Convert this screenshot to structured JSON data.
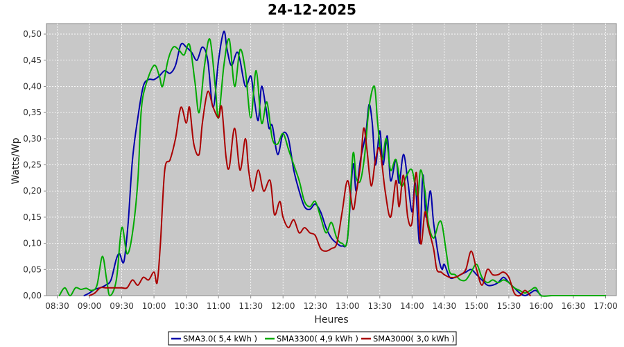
{
  "chart_data": {
    "type": "line",
    "title": "24-12-2025",
    "xlabel": "Heures",
    "ylabel": "Watts/Wp",
    "x_ticks": [
      "08:30",
      "09:00",
      "09:30",
      "10:00",
      "10:30",
      "11:00",
      "11:30",
      "12:00",
      "12:30",
      "13:00",
      "13:30",
      "14:00",
      "14:30",
      "15:00",
      "15:30",
      "16:00",
      "16:30",
      "17:00"
    ],
    "y_ticks": [
      "0,00",
      "0,05",
      "0,10",
      "0,15",
      "0,20",
      "0,25",
      "0,30",
      "0,35",
      "0,40",
      "0,45",
      "0,50"
    ],
    "xlim": [
      "08:20",
      "17:10"
    ],
    "ylim": [
      0,
      0.52
    ],
    "grid": true,
    "legend_position": "bottom",
    "series": [
      {
        "name": "SMA3.0( 5,4 kWh )",
        "color": "#0000aa",
        "points": [
          [
            "08:55",
            0.0
          ],
          [
            "09:00",
            0.005
          ],
          [
            "09:05",
            0.012
          ],
          [
            "09:10",
            0.015
          ],
          [
            "09:15",
            0.02
          ],
          [
            "09:20",
            0.03
          ],
          [
            "09:25",
            0.07
          ],
          [
            "09:28",
            0.08
          ],
          [
            "09:32",
            0.065
          ],
          [
            "09:36",
            0.14
          ],
          [
            "09:40",
            0.26
          ],
          [
            "09:45",
            0.34
          ],
          [
            "09:50",
            0.4
          ],
          [
            "09:55",
            0.413
          ],
          [
            "10:00",
            0.413
          ],
          [
            "10:05",
            0.42
          ],
          [
            "10:10",
            0.43
          ],
          [
            "10:15",
            0.425
          ],
          [
            "10:20",
            0.44
          ],
          [
            "10:25",
            0.48
          ],
          [
            "10:30",
            0.475
          ],
          [
            "10:35",
            0.465
          ],
          [
            "10:40",
            0.45
          ],
          [
            "10:45",
            0.475
          ],
          [
            "10:50",
            0.45
          ],
          [
            "10:55",
            0.36
          ],
          [
            "11:00",
            0.45
          ],
          [
            "11:05",
            0.505
          ],
          [
            "11:08",
            0.47
          ],
          [
            "11:12",
            0.44
          ],
          [
            "11:17",
            0.465
          ],
          [
            "11:20",
            0.45
          ],
          [
            "11:25",
            0.4
          ],
          [
            "11:30",
            0.42
          ],
          [
            "11:33",
            0.38
          ],
          [
            "11:37",
            0.335
          ],
          [
            "11:40",
            0.4
          ],
          [
            "11:44",
            0.36
          ],
          [
            "11:47",
            0.32
          ],
          [
            "11:50",
            0.325
          ],
          [
            "11:55",
            0.27
          ],
          [
            "12:00",
            0.31
          ],
          [
            "12:05",
            0.3
          ],
          [
            "12:10",
            0.24
          ],
          [
            "12:15",
            0.2
          ],
          [
            "12:20",
            0.17
          ],
          [
            "12:25",
            0.165
          ],
          [
            "12:30",
            0.175
          ],
          [
            "12:35",
            0.16
          ],
          [
            "12:40",
            0.13
          ],
          [
            "12:45",
            0.11
          ],
          [
            "12:50",
            0.1
          ],
          [
            "12:55",
            0.095
          ],
          [
            "13:00",
            0.11
          ],
          [
            "13:05",
            0.25
          ],
          [
            "13:08",
            0.2
          ],
          [
            "13:12",
            0.26
          ],
          [
            "13:17",
            0.31
          ],
          [
            "13:20",
            0.365
          ],
          [
            "13:23",
            0.33
          ],
          [
            "13:26",
            0.25
          ],
          [
            "13:30",
            0.315
          ],
          [
            "13:33",
            0.25
          ],
          [
            "13:37",
            0.305
          ],
          [
            "13:40",
            0.22
          ],
          [
            "13:45",
            0.26
          ],
          [
            "13:48",
            0.215
          ],
          [
            "13:52",
            0.27
          ],
          [
            "13:56",
            0.22
          ],
          [
            "14:00",
            0.16
          ],
          [
            "14:03",
            0.215
          ],
          [
            "14:07",
            0.1
          ],
          [
            "14:10",
            0.23
          ],
          [
            "14:13",
            0.15
          ],
          [
            "14:17",
            0.2
          ],
          [
            "14:20",
            0.14
          ],
          [
            "14:25",
            0.07
          ],
          [
            "14:28",
            0.05
          ],
          [
            "14:30",
            0.06
          ],
          [
            "14:35",
            0.035
          ],
          [
            "14:40",
            0.035
          ],
          [
            "14:45",
            0.04
          ],
          [
            "14:50",
            0.045
          ],
          [
            "14:55",
            0.05
          ],
          [
            "15:00",
            0.04
          ],
          [
            "15:05",
            0.03
          ],
          [
            "15:10",
            0.02
          ],
          [
            "15:15",
            0.02
          ],
          [
            "15:20",
            0.025
          ],
          [
            "15:25",
            0.035
          ],
          [
            "15:30",
            0.025
          ],
          [
            "15:35",
            0.015
          ],
          [
            "15:40",
            0.005
          ],
          [
            "15:45",
            0.0
          ],
          [
            "15:50",
            0.005
          ],
          [
            "15:55",
            0.01
          ],
          [
            "16:00",
            0.0
          ]
        ]
      },
      {
        "name": "SMA3300( 4,9 kWh )",
        "color": "#00aa00",
        "points": [
          [
            "08:32",
            0.0
          ],
          [
            "08:37",
            0.015
          ],
          [
            "08:42",
            0.0
          ],
          [
            "08:47",
            0.015
          ],
          [
            "08:52",
            0.012
          ],
          [
            "08:57",
            0.014
          ],
          [
            "09:02",
            0.01
          ],
          [
            "09:07",
            0.02
          ],
          [
            "09:12",
            0.075
          ],
          [
            "09:16",
            0.03
          ],
          [
            "09:19",
            0.0
          ],
          [
            "09:25",
            0.03
          ],
          [
            "09:30",
            0.13
          ],
          [
            "09:35",
            0.08
          ],
          [
            "09:40",
            0.12
          ],
          [
            "09:45",
            0.22
          ],
          [
            "09:48",
            0.35
          ],
          [
            "09:52",
            0.4
          ],
          [
            "10:00",
            0.44
          ],
          [
            "10:05",
            0.42
          ],
          [
            "10:08",
            0.4
          ],
          [
            "10:13",
            0.45
          ],
          [
            "10:18",
            0.475
          ],
          [
            "10:23",
            0.47
          ],
          [
            "10:28",
            0.46
          ],
          [
            "10:33",
            0.48
          ],
          [
            "10:38",
            0.41
          ],
          [
            "10:42",
            0.35
          ],
          [
            "10:47",
            0.44
          ],
          [
            "10:52",
            0.49
          ],
          [
            "10:57",
            0.4
          ],
          [
            "11:00",
            0.34
          ],
          [
            "11:05",
            0.44
          ],
          [
            "11:10",
            0.49
          ],
          [
            "11:15",
            0.4
          ],
          [
            "11:20",
            0.47
          ],
          [
            "11:25",
            0.43
          ],
          [
            "11:30",
            0.34
          ],
          [
            "11:35",
            0.43
          ],
          [
            "11:40",
            0.33
          ],
          [
            "11:45",
            0.37
          ],
          [
            "11:50",
            0.3
          ],
          [
            "11:55",
            0.29
          ],
          [
            "12:00",
            0.31
          ],
          [
            "12:05",
            0.28
          ],
          [
            "12:10",
            0.25
          ],
          [
            "12:15",
            0.22
          ],
          [
            "12:20",
            0.18
          ],
          [
            "12:25",
            0.17
          ],
          [
            "12:30",
            0.18
          ],
          [
            "12:35",
            0.15
          ],
          [
            "12:40",
            0.12
          ],
          [
            "12:45",
            0.14
          ],
          [
            "12:50",
            0.11
          ],
          [
            "12:55",
            0.1
          ],
          [
            "13:00",
            0.11
          ],
          [
            "13:05",
            0.27
          ],
          [
            "13:08",
            0.225
          ],
          [
            "13:12",
            0.22
          ],
          [
            "13:16",
            0.27
          ],
          [
            "13:20",
            0.36
          ],
          [
            "13:25",
            0.4
          ],
          [
            "13:28",
            0.33
          ],
          [
            "13:32",
            0.26
          ],
          [
            "13:36",
            0.3
          ],
          [
            "13:40",
            0.24
          ],
          [
            "13:45",
            0.26
          ],
          [
            "13:50",
            0.21
          ],
          [
            "13:55",
            0.23
          ],
          [
            "14:00",
            0.24
          ],
          [
            "14:05",
            0.19
          ],
          [
            "14:08",
            0.24
          ],
          [
            "14:12",
            0.2
          ],
          [
            "14:15",
            0.14
          ],
          [
            "14:20",
            0.11
          ],
          [
            "14:25",
            0.14
          ],
          [
            "14:28",
            0.135
          ],
          [
            "14:32",
            0.08
          ],
          [
            "14:35",
            0.045
          ],
          [
            "14:40",
            0.04
          ],
          [
            "14:45",
            0.03
          ],
          [
            "14:50",
            0.03
          ],
          [
            "14:55",
            0.045
          ],
          [
            "15:00",
            0.06
          ],
          [
            "15:05",
            0.035
          ],
          [
            "15:10",
            0.025
          ],
          [
            "15:15",
            0.03
          ],
          [
            "15:20",
            0.025
          ],
          [
            "15:25",
            0.03
          ],
          [
            "15:30",
            0.025
          ],
          [
            "15:35",
            0.015
          ],
          [
            "15:40",
            0.01
          ],
          [
            "15:45",
            0.005
          ],
          [
            "15:50",
            0.01
          ],
          [
            "15:55",
            0.015
          ],
          [
            "16:00",
            0.0
          ],
          [
            "16:10",
            0.0
          ],
          [
            "16:20",
            0.0
          ],
          [
            "16:30",
            0.0
          ],
          [
            "16:40",
            0.0
          ],
          [
            "16:50",
            0.0
          ],
          [
            "17:00",
            0.0
          ]
        ]
      },
      {
        "name": "SMA3000( 3,0 kWh )",
        "color": "#aa0000",
        "points": [
          [
            "09:00",
            0.0
          ],
          [
            "09:05",
            0.005
          ],
          [
            "09:10",
            0.015
          ],
          [
            "09:15",
            0.015
          ],
          [
            "09:20",
            0.015
          ],
          [
            "09:25",
            0.015
          ],
          [
            "09:30",
            0.015
          ],
          [
            "09:35",
            0.015
          ],
          [
            "09:40",
            0.03
          ],
          [
            "09:45",
            0.02
          ],
          [
            "09:50",
            0.035
          ],
          [
            "09:55",
            0.03
          ],
          [
            "10:00",
            0.045
          ],
          [
            "10:03",
            0.025
          ],
          [
            "10:06",
            0.1
          ],
          [
            "10:10",
            0.24
          ],
          [
            "10:15",
            0.26
          ],
          [
            "10:20",
            0.3
          ],
          [
            "10:25",
            0.36
          ],
          [
            "10:30",
            0.33
          ],
          [
            "10:33",
            0.36
          ],
          [
            "10:37",
            0.29
          ],
          [
            "10:42",
            0.27
          ],
          [
            "10:45",
            0.33
          ],
          [
            "10:50",
            0.39
          ],
          [
            "10:55",
            0.36
          ],
          [
            "11:00",
            0.34
          ],
          [
            "11:03",
            0.36
          ],
          [
            "11:07",
            0.265
          ],
          [
            "11:10",
            0.245
          ],
          [
            "11:15",
            0.32
          ],
          [
            "11:20",
            0.24
          ],
          [
            "11:25",
            0.3
          ],
          [
            "11:28",
            0.24
          ],
          [
            "11:32",
            0.2
          ],
          [
            "11:37",
            0.24
          ],
          [
            "11:42",
            0.2
          ],
          [
            "11:48",
            0.22
          ],
          [
            "11:52",
            0.155
          ],
          [
            "11:57",
            0.18
          ],
          [
            "12:00",
            0.15
          ],
          [
            "12:05",
            0.13
          ],
          [
            "12:10",
            0.145
          ],
          [
            "12:15",
            0.12
          ],
          [
            "12:20",
            0.13
          ],
          [
            "12:25",
            0.12
          ],
          [
            "12:30",
            0.115
          ],
          [
            "12:35",
            0.09
          ],
          [
            "12:40",
            0.085
          ],
          [
            "12:45",
            0.09
          ],
          [
            "12:50",
            0.1
          ],
          [
            "12:55",
            0.16
          ],
          [
            "13:00",
            0.22
          ],
          [
            "13:05",
            0.165
          ],
          [
            "13:08",
            0.195
          ],
          [
            "13:12",
            0.25
          ],
          [
            "13:15",
            0.32
          ],
          [
            "13:18",
            0.28
          ],
          [
            "13:22",
            0.21
          ],
          [
            "13:26",
            0.26
          ],
          [
            "13:30",
            0.28
          ],
          [
            "13:35",
            0.2
          ],
          [
            "13:40",
            0.15
          ],
          [
            "13:45",
            0.22
          ],
          [
            "13:48",
            0.17
          ],
          [
            "13:52",
            0.23
          ],
          [
            "13:56",
            0.15
          ],
          [
            "14:00",
            0.14
          ],
          [
            "14:04",
            0.235
          ],
          [
            "14:08",
            0.1
          ],
          [
            "14:12",
            0.16
          ],
          [
            "14:15",
            0.13
          ],
          [
            "14:20",
            0.09
          ],
          [
            "14:23",
            0.05
          ],
          [
            "14:27",
            0.045
          ],
          [
            "14:30",
            0.04
          ],
          [
            "14:35",
            0.035
          ],
          [
            "14:40",
            0.035
          ],
          [
            "14:45",
            0.04
          ],
          [
            "14:50",
            0.05
          ],
          [
            "14:55",
            0.085
          ],
          [
            "15:00",
            0.05
          ],
          [
            "15:05",
            0.02
          ],
          [
            "15:10",
            0.05
          ],
          [
            "15:15",
            0.04
          ],
          [
            "15:20",
            0.04
          ],
          [
            "15:25",
            0.045
          ],
          [
            "15:30",
            0.035
          ],
          [
            "15:35",
            0.005
          ],
          [
            "15:40",
            0.0
          ],
          [
            "15:45",
            0.01
          ],
          [
            "15:50",
            0.0
          ]
        ]
      }
    ]
  }
}
